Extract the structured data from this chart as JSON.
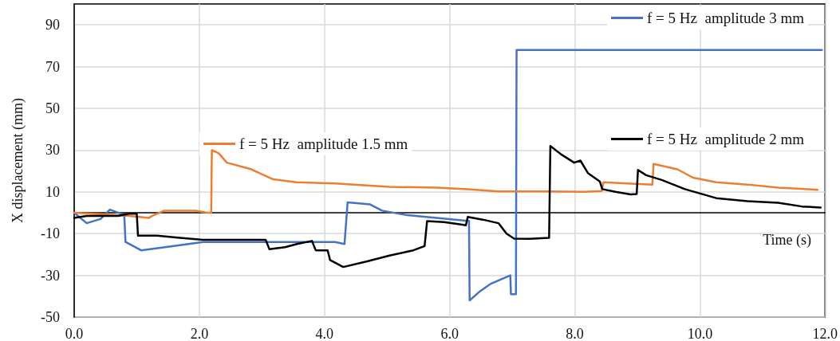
{
  "chart_data": {
    "type": "line",
    "xlabel": "Time (s)",
    "ylabel": "X displacement (mm)",
    "xlim": [
      0,
      12
    ],
    "xticks": [
      {
        "value": 0,
        "label": "0.0"
      },
      {
        "value": 2,
        "label": "2.0"
      },
      {
        "value": 4,
        "label": "4.0"
      },
      {
        "value": 6,
        "label": "6.0"
      },
      {
        "value": 8,
        "label": "8.0"
      },
      {
        "value": 10,
        "label": "10.0"
      },
      {
        "value": 12,
        "label": "12.0"
      }
    ],
    "ylim": [
      -50,
      100
    ],
    "yticks": [
      -50,
      -30,
      -10,
      10,
      30,
      50,
      70,
      90
    ],
    "grid": true,
    "legend": "top right",
    "marker": "none",
    "line_style": "solid",
    "series": [
      {
        "name": "f = 5 Hz  amplitude 3 mm",
        "color": "#4472c4",
        "x": [
          0,
          0.2,
          0.42,
          0.57,
          0.8,
          0.82,
          1.07,
          1.57,
          2.06,
          3.06,
          4.17,
          4.32,
          4.37,
          4.73,
          4.92,
          5.29,
          5.79,
          6.16,
          6.31,
          6.32,
          6.47,
          6.66,
          6.97,
          6.98,
          7.06,
          7.07,
          11.95
        ],
        "values": [
          0,
          -5,
          -3,
          1.5,
          -1,
          -14,
          -18,
          -16,
          -14,
          -14,
          -14,
          -15,
          5,
          4,
          1,
          -1,
          -2.5,
          -3.5,
          -4,
          -42,
          -38,
          -34,
          -30,
          -39,
          -39,
          78,
          78
        ]
      },
      {
        "name": "f = 5 Hz  amplitude 1.5 mm",
        "color": "#ed7d31",
        "x": [
          0,
          0.45,
          0.88,
          1.19,
          1.25,
          1.44,
          1.94,
          2.12,
          2.19,
          2.2,
          2.31,
          2.44,
          2.81,
          3.18,
          3.55,
          4.17,
          5.04,
          5.79,
          6.29,
          6.78,
          7.53,
          8.15,
          8.43,
          8.46,
          8.89,
          9.24,
          9.26,
          9.64,
          9.89,
          10.26,
          10.76,
          11.25,
          11.88
        ],
        "values": [
          0,
          -0.8,
          -1.5,
          -2.5,
          -1.5,
          1,
          1,
          0,
          0,
          30,
          28.5,
          24,
          21,
          16,
          14.6,
          14,
          12.4,
          12,
          11.3,
          10.2,
          10.2,
          10,
          10.4,
          14.6,
          13.9,
          13.5,
          23.4,
          20.8,
          16.8,
          14.6,
          13.5,
          12,
          11
        ]
      },
      {
        "name": "f = 5 Hz  amplitude 2 mm",
        "color": "#000000",
        "x": [
          0,
          0.2,
          0.7,
          0.88,
          1.0,
          1.02,
          1.32,
          1.69,
          2.06,
          3.06,
          3.12,
          3.37,
          3.56,
          3.8,
          3.86,
          4.05,
          4.09,
          4.3,
          4.67,
          5.04,
          5.42,
          5.6,
          5.64,
          5.91,
          6.16,
          6.26,
          6.29,
          6.53,
          6.78,
          6.91,
          7.03,
          7.28,
          7.59,
          7.61,
          7.78,
          7.99,
          8.09,
          8.21,
          8.4,
          8.44,
          8.65,
          8.89,
          8.99,
          9.01,
          9.14,
          9.39,
          9.76,
          10.26,
          10.76,
          11.25,
          11.63,
          11.93
        ],
        "values": [
          -2.5,
          -1.5,
          -1.5,
          -0.5,
          -0.5,
          -11,
          -11,
          -12,
          -13,
          -13,
          -17.5,
          -16.5,
          -15,
          -13.5,
          -18,
          -18,
          -22.7,
          -26,
          -23.4,
          -20.5,
          -18,
          -16,
          -4,
          -4.5,
          -5.5,
          -6,
          -2,
          -3.3,
          -5,
          -10,
          -12.4,
          -12.5,
          -12,
          32,
          28,
          24,
          25,
          19,
          15,
          11.3,
          10,
          8.8,
          9,
          20.5,
          18,
          15.7,
          11.3,
          7,
          5.5,
          4.8,
          3,
          2.5
        ]
      }
    ]
  }
}
